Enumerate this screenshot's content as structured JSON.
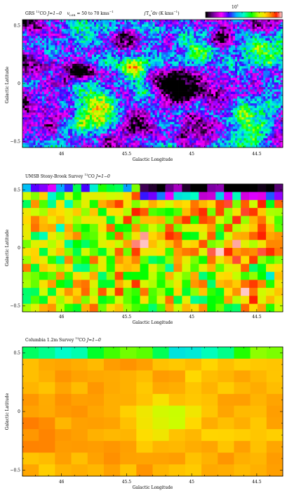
{
  "colorbar": {
    "label": "10",
    "label_sup": "1",
    "stops": [
      "#ffffff",
      "#ff0000",
      "#ff8800",
      "#ffff00",
      "#00ff00",
      "#00ffff",
      "#0000ff",
      "#ff00ff",
      "#000000"
    ]
  },
  "chart_data": [
    {
      "type": "heatmap",
      "title_parts": {
        "survey": "GRS",
        "isotope_sup": "13",
        "molecule": "CO",
        "transition": "J=1−0",
        "vlsr_label": "v",
        "vlsr_sub": "LSR",
        "vlsr_range": "= 50 to 70 kms",
        "vlsr_unit_sup": "−1",
        "integral_label": "∫T",
        "integral_sub": "A",
        "integral_sup": "*",
        "integral_rest": "dv (K kms",
        "integral_rest_sup": "−1",
        "integral_close": ")"
      },
      "xlabel": "Galactic Longitude",
      "ylabel": "Galactic Latitude",
      "xlim": [
        46.3,
        44.3
      ],
      "ylim": [
        -0.55,
        0.55
      ],
      "xticks": [
        46,
        45.5,
        45,
        44.5
      ],
      "xtick_labels": [
        "46",
        "45.5",
        "45",
        "44.5"
      ],
      "yticks": [
        0.5,
        0,
        -0.5
      ],
      "ytick_labels": [
        "0.5",
        "0",
        "−0.5"
      ],
      "grid_cols": 120,
      "grid_rows": 55,
      "colormap": "rainbow-white-high"
    },
    {
      "type": "heatmap",
      "title_parts": {
        "survey": "UMSB Stony-Brook Survey",
        "isotope_sup": "13",
        "molecule": "CO",
        "transition": "J=1−0"
      },
      "xlabel": "Galactic Longitude",
      "ylabel": "Galactic Latitude",
      "xlim": [
        46.3,
        44.3
      ],
      "ylim": [
        -0.55,
        0.55
      ],
      "xticks": [
        46,
        45.5,
        45,
        44.5
      ],
      "xtick_labels": [
        "46",
        "45.5",
        "45",
        "44.5"
      ],
      "yticks": [
        0.5,
        0,
        -0.5
      ],
      "ytick_labels": [
        "0.5",
        "0",
        "−0.5"
      ],
      "grid_cols": 31,
      "grid_rows": 16,
      "colormap": "rainbow-white-high"
    },
    {
      "type": "heatmap",
      "title_parts": {
        "survey": "Columbia 1.2m Survey",
        "isotope_sup": "13",
        "molecule": "CO",
        "transition": "J=1−0"
      },
      "xlabel": "Galactic Longitude",
      "ylabel": "Galactic Latitude",
      "xlim": [
        46.3,
        44.3
      ],
      "ylim": [
        -0.55,
        0.55
      ],
      "xticks": [
        46,
        45.5,
        45,
        44.5
      ],
      "xtick_labels": [
        "46",
        "45.5",
        "45",
        "44.5"
      ],
      "yticks": [
        0.5,
        0,
        -0.5
      ],
      "ytick_labels": [
        "0.5",
        "0",
        "−0.5"
      ],
      "grid_cols": 16,
      "grid_rows": 11,
      "colormap": "rainbow-white-high"
    }
  ]
}
